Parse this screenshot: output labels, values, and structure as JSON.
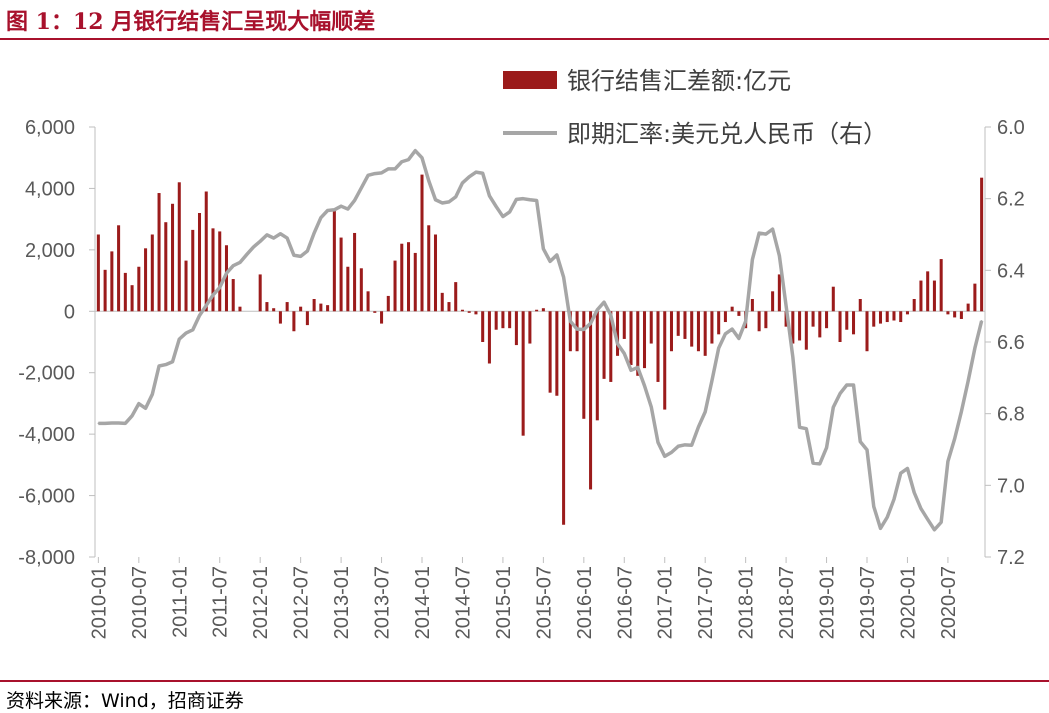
{
  "figure": {
    "title": "图 1：12 月银行结售汇呈现大幅顺差",
    "source": "资料来源：Wind，招商证券"
  },
  "colors": {
    "accent": "#a8112c",
    "bar": "#9b1b1b",
    "line": "#a6a6a6",
    "axis": "#bfbfbf",
    "text": "#595959"
  },
  "chart_data": {
    "type": "bar+line",
    "x": [
      "2010-01",
      "2010-02",
      "2010-03",
      "2010-04",
      "2010-05",
      "2010-06",
      "2010-07",
      "2010-08",
      "2010-09",
      "2010-10",
      "2010-11",
      "2010-12",
      "2011-01",
      "2011-02",
      "2011-03",
      "2011-04",
      "2011-05",
      "2011-06",
      "2011-07",
      "2011-08",
      "2011-09",
      "2011-10",
      "2011-11",
      "2011-12",
      "2012-01",
      "2012-02",
      "2012-03",
      "2012-04",
      "2012-05",
      "2012-06",
      "2012-07",
      "2012-08",
      "2012-09",
      "2012-10",
      "2012-11",
      "2012-12",
      "2013-01",
      "2013-02",
      "2013-03",
      "2013-04",
      "2013-05",
      "2013-06",
      "2013-07",
      "2013-08",
      "2013-09",
      "2013-10",
      "2013-11",
      "2013-12",
      "2014-01",
      "2014-02",
      "2014-03",
      "2014-04",
      "2014-05",
      "2014-06",
      "2014-07",
      "2014-08",
      "2014-09",
      "2014-10",
      "2014-11",
      "2014-12",
      "2015-01",
      "2015-02",
      "2015-03",
      "2015-04",
      "2015-05",
      "2015-06",
      "2015-07",
      "2015-08",
      "2015-09",
      "2015-10",
      "2015-11",
      "2015-12",
      "2016-01",
      "2016-02",
      "2016-03",
      "2016-04",
      "2016-05",
      "2016-06",
      "2016-07",
      "2016-08",
      "2016-09",
      "2016-10",
      "2016-11",
      "2016-12",
      "2017-01",
      "2017-02",
      "2017-03",
      "2017-04",
      "2017-05",
      "2017-06",
      "2017-07",
      "2017-08",
      "2017-09",
      "2017-10",
      "2017-11",
      "2017-12",
      "2018-01",
      "2018-02",
      "2018-03",
      "2018-04",
      "2018-05",
      "2018-06",
      "2018-07",
      "2018-08",
      "2018-09",
      "2018-10",
      "2018-11",
      "2018-12",
      "2019-01",
      "2019-02",
      "2019-03",
      "2019-04",
      "2019-05",
      "2019-06",
      "2019-07",
      "2019-08",
      "2019-09",
      "2019-10",
      "2019-11",
      "2019-12",
      "2020-01",
      "2020-02",
      "2020-03",
      "2020-04",
      "2020-05",
      "2020-06",
      "2020-07",
      "2020-08",
      "2020-09",
      "2020-10",
      "2020-11",
      "2020-12"
    ],
    "x_tick_labels": [
      "2010-01",
      "2010-07",
      "2011-01",
      "2011-07",
      "2012-01",
      "2012-07",
      "2013-01",
      "2013-07",
      "2014-01",
      "2014-07",
      "2015-01",
      "2015-07",
      "2016-01",
      "2016-07",
      "2017-01",
      "2017-07",
      "2018-01",
      "2018-07",
      "2019-01",
      "2019-07",
      "2020-01",
      "2020-07"
    ],
    "series": [
      {
        "name": "银行结售汇差额:亿元",
        "type": "bar",
        "axis": "left",
        "values": [
          2500,
          1350,
          1950,
          2800,
          1250,
          850,
          1450,
          2050,
          2500,
          3850,
          2900,
          3500,
          4200,
          1650,
          2650,
          3200,
          3900,
          2700,
          2600,
          2150,
          1050,
          150,
          0,
          0,
          1200,
          300,
          100,
          -400,
          300,
          -650,
          150,
          -450,
          400,
          250,
          200,
          3300,
          2400,
          1450,
          2550,
          1400,
          650,
          -50,
          -400,
          500,
          1650,
          2200,
          2250,
          1900,
          4450,
          2800,
          2500,
          600,
          300,
          950,
          50,
          -50,
          -100,
          -1000,
          -1700,
          -600,
          -550,
          -550,
          -1100,
          -4050,
          -1050,
          50,
          100,
          -2650,
          -2750,
          -6950,
          -1300,
          -1300,
          -3500,
          -5800,
          -3550,
          -2200,
          -2300,
          -1450,
          -900,
          -1750,
          -2100,
          -1850,
          -1050,
          -2300,
          -3200,
          -1300,
          -800,
          -900,
          -1150,
          -1300,
          -1450,
          -1050,
          -750,
          -350,
          150,
          -150,
          -550,
          400,
          -650,
          -550,
          650,
          1200,
          -500,
          -1050,
          -950,
          -1250,
          -500,
          -850,
          -550,
          800,
          -1000,
          -600,
          -750,
          400,
          -1300,
          -500,
          -400,
          -350,
          -300,
          -350,
          -100,
          400,
          1000,
          1300,
          1000,
          1700,
          -100,
          -200,
          -250,
          250,
          900,
          4350
        ]
      },
      {
        "name": "即期汇率:美元兑人民币（右）",
        "type": "line",
        "axis": "right",
        "values": [
          6.827,
          6.827,
          6.826,
          6.826,
          6.827,
          6.806,
          6.772,
          6.785,
          6.746,
          6.667,
          6.663,
          6.655,
          6.592,
          6.575,
          6.566,
          6.526,
          6.498,
          6.469,
          6.448,
          6.408,
          6.387,
          6.378,
          6.356,
          6.335,
          6.319,
          6.301,
          6.31,
          6.298,
          6.31,
          6.358,
          6.361,
          6.346,
          6.296,
          6.253,
          6.233,
          6.231,
          6.221,
          6.229,
          6.205,
          6.17,
          6.135,
          6.13,
          6.128,
          6.117,
          6.117,
          6.097,
          6.091,
          6.066,
          6.086,
          6.15,
          6.203,
          6.212,
          6.209,
          6.195,
          6.156,
          6.139,
          6.126,
          6.129,
          6.192,
          6.222,
          6.25,
          6.237,
          6.202,
          6.2,
          6.203,
          6.205,
          6.34,
          6.375,
          6.357,
          6.419,
          6.542,
          6.564,
          6.565,
          6.548,
          6.51,
          6.489,
          6.525,
          6.605,
          6.632,
          6.679,
          6.671,
          6.722,
          6.781,
          6.88,
          6.919,
          6.908,
          6.891,
          6.887,
          6.888,
          6.837,
          6.795,
          6.708,
          6.617,
          6.577,
          6.564,
          6.59,
          6.542,
          6.37,
          6.296,
          6.299,
          6.285,
          6.359,
          6.499,
          6.642,
          6.838,
          6.842,
          6.938,
          6.94,
          6.895,
          6.782,
          6.744,
          6.72,
          6.72,
          6.878,
          6.901,
          7.059,
          7.12,
          7.089,
          7.039,
          6.966,
          6.953,
          7.02,
          7.065,
          7.095,
          7.124,
          7.103,
          6.933,
          6.87,
          6.794,
          6.709,
          6.617,
          6.541
        ]
      }
    ],
    "y_left": {
      "min": -8000,
      "max": 6000,
      "ticks": [
        -8000,
        -6000,
        -4000,
        -2000,
        0,
        2000,
        4000,
        6000
      ],
      "tick_labels": [
        "-8,000",
        "-6,000",
        "-4,000",
        "-2,000",
        "0",
        "2,000",
        "4,000",
        "6,000"
      ]
    },
    "y_right": {
      "min": 6.0,
      "max": 7.2,
      "inverted": true,
      "ticks": [
        6.0,
        6.2,
        6.4,
        6.6,
        6.8,
        7.0,
        7.2
      ],
      "tick_labels": [
        "6.0",
        "6.2",
        "6.4",
        "6.6",
        "6.8",
        "7.0",
        "7.2"
      ]
    },
    "legend": "top-right",
    "grid": false
  }
}
